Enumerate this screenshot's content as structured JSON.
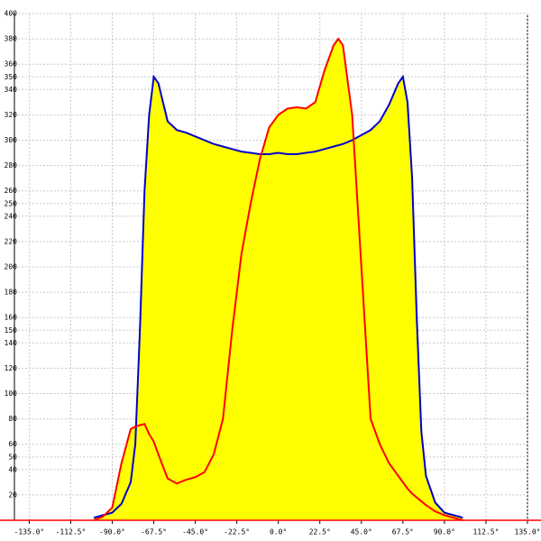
{
  "chart_data": {
    "type": "area-line",
    "x": [
      -100,
      -95,
      -90,
      -85,
      -80,
      -77.5,
      -75,
      -72.5,
      -70,
      -67.5,
      -65,
      -60,
      -55,
      -50,
      -45,
      -40,
      -35,
      -30,
      -25,
      -20,
      -15,
      -10,
      -5,
      0,
      5,
      10,
      15,
      20,
      25,
      30,
      32.5,
      35,
      40,
      45,
      50,
      55,
      60,
      65,
      67.5,
      70,
      72.5,
      75,
      77.5,
      80,
      85,
      90,
      95,
      100
    ],
    "series": [
      {
        "color": "#0000cc",
        "fill": "#ffff00",
        "values": [
          2,
          4,
          6,
          13,
          30,
          60,
          150,
          260,
          320,
          350,
          345,
          315,
          308,
          306,
          303,
          300,
          297,
          295,
          293,
          291,
          290,
          289,
          289,
          290,
          289,
          289,
          290,
          291,
          293,
          295,
          296,
          297,
          300,
          304,
          308,
          315,
          328,
          345,
          350,
          330,
          270,
          160,
          70,
          35,
          14,
          6,
          4,
          2
        ]
      },
      {
        "color": "#ff0000",
        "fill": "#ffff00",
        "values": [
          0,
          3,
          10,
          45,
          72,
          74,
          75,
          76,
          68,
          62,
          52,
          33,
          29,
          32,
          34,
          38,
          52,
          80,
          150,
          210,
          250,
          285,
          310,
          320,
          325,
          326,
          325,
          330,
          355,
          375,
          380,
          375,
          320,
          200,
          80,
          60,
          45,
          35,
          30,
          25,
          21,
          18,
          15,
          12,
          7,
          4,
          2,
          0
        ]
      }
    ],
    "xlim": [
      -143,
      135
    ],
    "ylim": [
      0,
      400
    ],
    "xticks": [
      {
        "value": -135,
        "label": "-135.0°"
      },
      {
        "value": -112.5,
        "label": "-112.5°"
      },
      {
        "value": -90,
        "label": "-90.0°"
      },
      {
        "value": -67.5,
        "label": "-67.5°"
      },
      {
        "value": -45,
        "label": "-45.0°"
      },
      {
        "value": -22.5,
        "label": "-22.5°"
      },
      {
        "value": 0,
        "label": "0.0°"
      },
      {
        "value": 22.5,
        "label": "22.5°"
      },
      {
        "value": 45,
        "label": "45.0°"
      },
      {
        "value": 67.5,
        "label": "67.5°"
      },
      {
        "value": 90,
        "label": "90.0°"
      },
      {
        "value": 112.5,
        "label": "112.5°"
      },
      {
        "value": 135,
        "label": "135.0°"
      }
    ],
    "yticks": [
      20,
      40,
      50,
      60,
      80,
      100,
      120,
      140,
      150,
      160,
      180,
      200,
      220,
      240,
      250,
      260,
      280,
      300,
      320,
      340,
      350,
      360,
      380,
      400
    ],
    "grid": true
  }
}
